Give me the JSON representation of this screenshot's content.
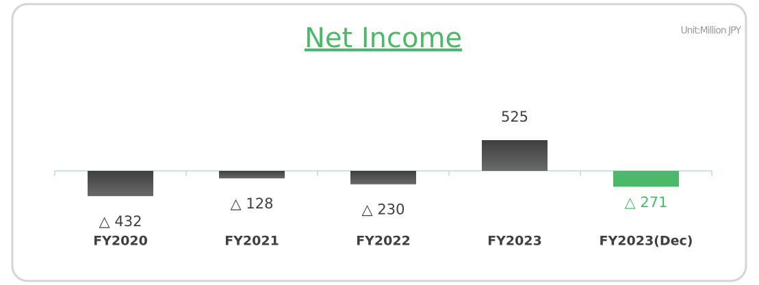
{
  "chart_data": {
    "type": "bar",
    "title": "Net Income",
    "unit": "Unit:Million JPY",
    "categories": [
      "FY2020",
      "FY2021",
      "FY2022",
      "FY2023",
      "FY2023(Dec)"
    ],
    "values": [
      -432,
      -128,
      -230,
      525,
      -271
    ],
    "value_labels": [
      "△ 432",
      "△ 128",
      "△ 230",
      "525",
      "△ 271"
    ],
    "colors": [
      "#595959",
      "#595959",
      "#595959",
      "#595959",
      "#4cb86a"
    ],
    "ylim": [
      -1500,
      1500
    ]
  }
}
